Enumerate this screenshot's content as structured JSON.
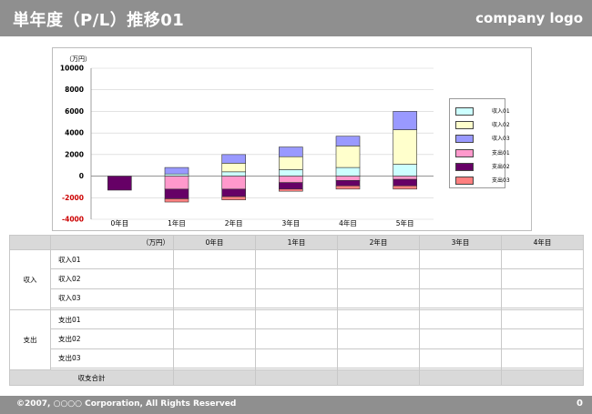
{
  "header": {
    "title": "単年度（P/L）推移01",
    "logo": "company logo"
  },
  "footer": {
    "copyright": "©2007, ○○○○ Corporation, All Rights Reserved",
    "page": "0"
  },
  "chart_data": {
    "type": "bar",
    "stacked": true,
    "unit_label": "（万円）",
    "categories": [
      "0年目",
      "1年目",
      "2年目",
      "3年目",
      "4年目",
      "5年目"
    ],
    "ylim": [
      -4000,
      10000
    ],
    "yticks": [
      "10000",
      "8000",
      "6000",
      "4000",
      "2000",
      "0",
      "-2000",
      "-4000"
    ],
    "grid": true,
    "legend_position": "right",
    "series": [
      {
        "name": "収入01",
        "color": "#ccffff",
        "values": [
          0,
          200,
          400,
          600,
          800,
          1100
        ]
      },
      {
        "name": "収入02",
        "color": "#ffffcc",
        "values": [
          0,
          0,
          800,
          1200,
          2000,
          3200
        ]
      },
      {
        "name": "収入03",
        "color": "#9999ff",
        "values": [
          0,
          600,
          800,
          900,
          900,
          1700
        ]
      },
      {
        "name": "支出01",
        "color": "#ff99cc",
        "values": [
          0,
          -1200,
          -1200,
          -600,
          -400,
          -300
        ]
      },
      {
        "name": "支出02",
        "color": "#660066",
        "values": [
          -1300,
          -900,
          -700,
          -600,
          -500,
          -600
        ]
      },
      {
        "name": "支出03",
        "color": "#ff8080",
        "values": [
          0,
          -300,
          -300,
          -200,
          -300,
          -300
        ]
      }
    ]
  },
  "table": {
    "unit": "（万円）",
    "columns": [
      "0年目",
      "1年目",
      "2年目",
      "3年目",
      "4年目"
    ],
    "income_label": "収入",
    "income_rows": [
      "収入01",
      "収入02",
      "収入03"
    ],
    "expense_label": "支出",
    "expense_rows": [
      "支出01",
      "支出02",
      "支出03"
    ],
    "total_label": "収支合計"
  }
}
